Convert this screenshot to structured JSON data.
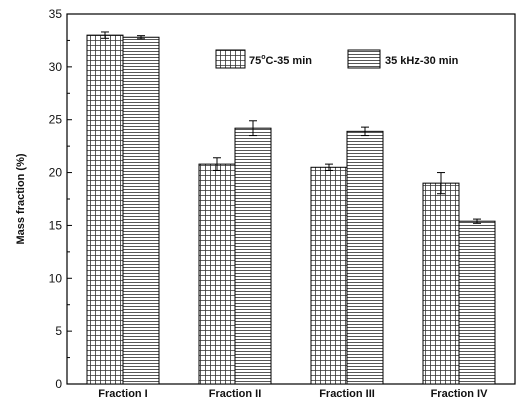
{
  "chart_data": {
    "type": "bar",
    "categories": [
      "Fraction I",
      "Fraction II",
      "Fraction III",
      "Fraction IV"
    ],
    "ylabel": "Mass fraction (%)",
    "xlabel": "",
    "ylim": [
      0,
      35
    ],
    "yticks": [
      0,
      5,
      10,
      15,
      20,
      25,
      30,
      35
    ],
    "legend_position": "top-right",
    "grid": false,
    "series": [
      {
        "name": "75°C-35 min",
        "legend_main": "75",
        "legend_sup": "o",
        "legend_rest": "C-35 min",
        "pattern": "grid",
        "values": [
          33.0,
          20.8,
          20.5,
          19.0
        ],
        "errors": [
          0.3,
          0.6,
          0.3,
          1.0
        ]
      },
      {
        "name": "35 kHz-30 min",
        "legend_main": "35 kHz-30 min",
        "pattern": "horizontal-lines",
        "values": [
          32.8,
          24.2,
          23.9,
          15.4
        ],
        "errors": [
          0.15,
          0.7,
          0.4,
          0.2
        ]
      }
    ]
  }
}
